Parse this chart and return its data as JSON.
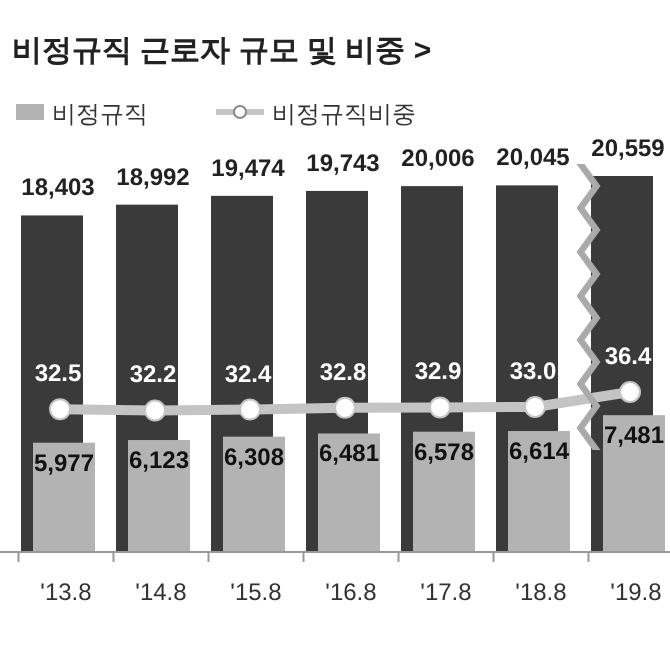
{
  "chart_data": {
    "type": "bar",
    "title": "비정규직 근로자 규모 및 비중 >",
    "categories": [
      "'13.8",
      "'14.8",
      "'15.8",
      "'16.8",
      "'17.8",
      "'18.8",
      "'19.8"
    ],
    "series": [
      {
        "color": "#3a3a3a",
        "values": [
          18403,
          18992,
          19474,
          19743,
          20006,
          20045,
          20559
        ],
        "value_labels": [
          "18,403",
          "18,992",
          "19,474",
          "19,743",
          "20,006",
          "20,045",
          "20,559"
        ]
      },
      {
        "name": "비정규직",
        "color": "#b3b3b3",
        "values": [
          5977,
          6123,
          6308,
          6481,
          6578,
          6614,
          7481
        ],
        "value_labels": [
          "5,977",
          "6,123",
          "6,308",
          "6,481",
          "6,578",
          "6,614",
          "7,481"
        ]
      },
      {
        "name": "비정규직비중",
        "type": "line",
        "axis": "y2",
        "color": "#c4c4c4",
        "values": [
          32.5,
          32.2,
          32.4,
          32.8,
          32.9,
          33.0,
          36.4
        ],
        "value_labels": [
          "32.5",
          "32.2",
          "32.4",
          "32.8",
          "32.9",
          "33.0",
          "36.4"
        ]
      }
    ],
    "legend": "top left",
    "marker": "circle",
    "tick_labels": "x",
    "grid": false
  }
}
